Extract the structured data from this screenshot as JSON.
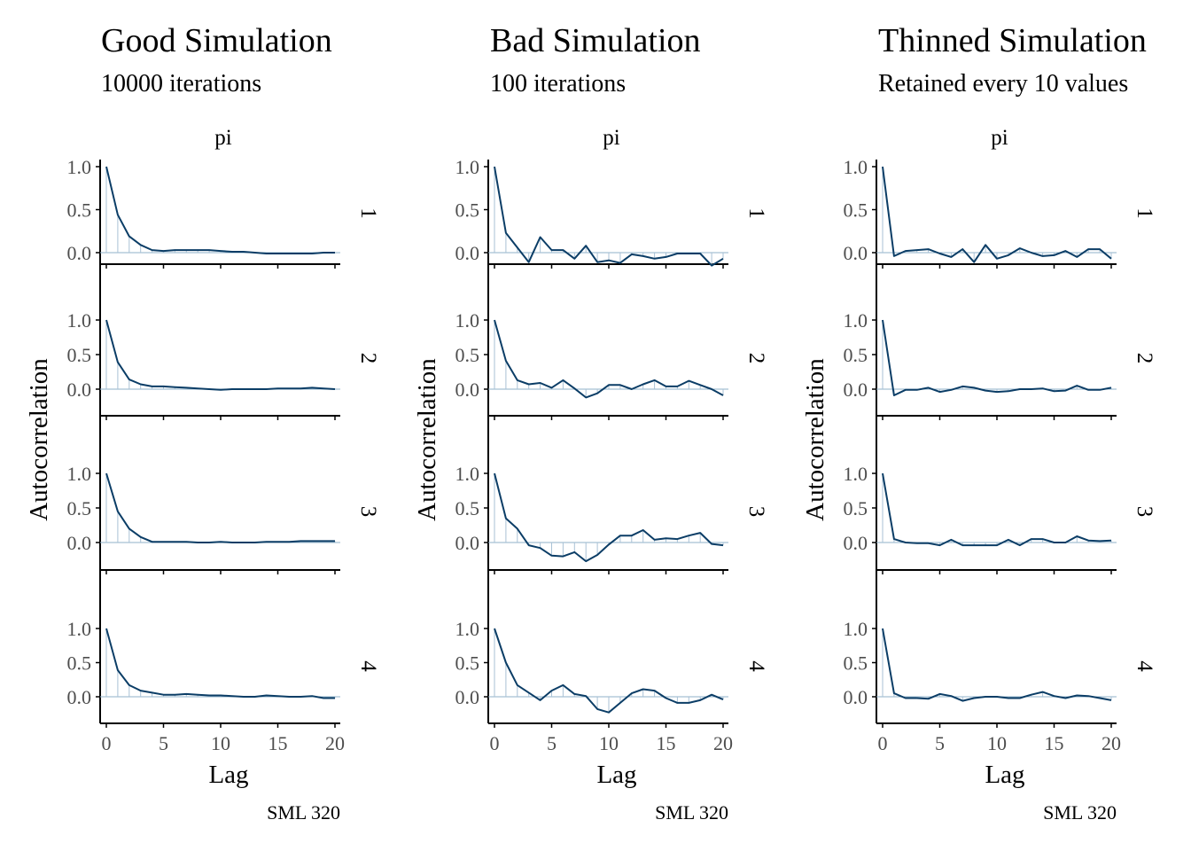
{
  "colors": {
    "line": "#0b3d66",
    "spike": "#a9c2d6",
    "zero_line": "#8fb0c8",
    "axis": "#000000",
    "tick_text": "#4d4d4d",
    "text": "#000000"
  },
  "chart_data": [
    {
      "type": "line",
      "title": "Good Simulation",
      "subtitle": "10000 iterations",
      "strip_label": "pi",
      "xlabel": "Lag",
      "ylabel": "Autocorrelation",
      "caption": "SML 320",
      "x_ticks": [
        "0",
        "5",
        "10",
        "15",
        "20"
      ],
      "xlim": [
        0,
        20
      ],
      "panels": [
        {
          "chain": "1",
          "ylim": [
            -0.02,
            1.0
          ],
          "yticks": [
            "1.0",
            "0.5",
            "0.0"
          ],
          "lags": [
            0,
            1,
            2,
            3,
            4,
            5,
            6,
            7,
            8,
            9,
            10,
            11,
            12,
            13,
            14,
            15,
            16,
            17,
            18,
            19,
            20
          ],
          "acf": [
            1.0,
            0.44,
            0.19,
            0.09,
            0.03,
            0.02,
            0.03,
            0.03,
            0.03,
            0.03,
            0.02,
            0.01,
            0.01,
            0.0,
            -0.01,
            -0.01,
            -0.01,
            -0.01,
            -0.01,
            0.0,
            0.0
          ]
        },
        {
          "chain": "2",
          "ylim": [
            -0.02,
            1.0
          ],
          "yticks": [
            "1.0",
            "0.5",
            "0.0"
          ],
          "lags": [
            0,
            1,
            2,
            3,
            4,
            5,
            6,
            7,
            8,
            9,
            10,
            11,
            12,
            13,
            14,
            15,
            16,
            17,
            18,
            19,
            20
          ],
          "acf": [
            1.0,
            0.39,
            0.14,
            0.07,
            0.04,
            0.04,
            0.03,
            0.02,
            0.01,
            0.0,
            -0.01,
            0.0,
            0.0,
            0.0,
            0.0,
            0.01,
            0.01,
            0.01,
            0.02,
            0.01,
            0.0
          ]
        },
        {
          "chain": "3",
          "ylim": [
            -0.02,
            1.0
          ],
          "yticks": [
            "1.0",
            "0.5",
            "0.0"
          ],
          "lags": [
            0,
            1,
            2,
            3,
            4,
            5,
            6,
            7,
            8,
            9,
            10,
            11,
            12,
            13,
            14,
            15,
            16,
            17,
            18,
            19,
            20
          ],
          "acf": [
            1.0,
            0.45,
            0.2,
            0.08,
            0.01,
            0.01,
            0.01,
            0.01,
            0.0,
            0.0,
            0.01,
            0.0,
            0.0,
            0.0,
            0.01,
            0.01,
            0.01,
            0.02,
            0.02,
            0.02,
            0.02
          ]
        },
        {
          "chain": "4",
          "ylim": [
            -0.02,
            1.0
          ],
          "yticks": [
            "1.0",
            "0.5",
            "0.0"
          ],
          "lags": [
            0,
            1,
            2,
            3,
            4,
            5,
            6,
            7,
            8,
            9,
            10,
            11,
            12,
            13,
            14,
            15,
            16,
            17,
            18,
            19,
            20
          ],
          "acf": [
            1.0,
            0.39,
            0.17,
            0.09,
            0.06,
            0.03,
            0.03,
            0.04,
            0.03,
            0.02,
            0.02,
            0.01,
            0.0,
            0.0,
            0.02,
            0.01,
            0.0,
            0.0,
            0.01,
            -0.02,
            -0.02
          ]
        }
      ]
    },
    {
      "type": "line",
      "title": "Bad Simulation",
      "subtitle": "100 iterations",
      "strip_label": "pi",
      "xlabel": "Lag",
      "ylabel": "Autocorrelation",
      "caption": "SML 320",
      "x_ticks": [
        "0",
        "5",
        "10",
        "15",
        "20"
      ],
      "xlim": [
        0,
        20
      ],
      "panels": [
        {
          "chain": "1",
          "ylim": [
            -0.33,
            1.0
          ],
          "yticks": [
            "1.0",
            "0.5",
            "0.0"
          ],
          "lags": [
            0,
            1,
            2,
            3,
            4,
            5,
            6,
            7,
            8,
            9,
            10,
            11,
            12,
            13,
            14,
            15,
            16,
            17,
            18,
            19,
            20
          ],
          "acf": [
            1.0,
            0.23,
            0.06,
            -0.11,
            0.18,
            0.03,
            0.03,
            -0.07,
            0.08,
            -0.11,
            -0.09,
            -0.12,
            -0.02,
            -0.04,
            -0.07,
            -0.05,
            -0.01,
            -0.01,
            -0.01,
            -0.15,
            -0.07
          ]
        },
        {
          "chain": "2",
          "ylim": [
            -0.33,
            1.0
          ],
          "yticks": [
            "1.0",
            "0.5",
            "0.0"
          ],
          "lags": [
            0,
            1,
            2,
            3,
            4,
            5,
            6,
            7,
            8,
            9,
            10,
            11,
            12,
            13,
            14,
            15,
            16,
            17,
            18,
            19,
            20
          ],
          "acf": [
            1.0,
            0.41,
            0.13,
            0.07,
            0.09,
            0.02,
            0.13,
            0.01,
            -0.12,
            -0.06,
            0.06,
            0.06,
            0.0,
            0.07,
            0.13,
            0.04,
            0.04,
            0.12,
            0.06,
            0.0,
            -0.09
          ]
        },
        {
          "chain": "3",
          "ylim": [
            -0.33,
            1.0
          ],
          "yticks": [
            "1.0",
            "0.5",
            "0.0"
          ],
          "lags": [
            0,
            1,
            2,
            3,
            4,
            5,
            6,
            7,
            8,
            9,
            10,
            11,
            12,
            13,
            14,
            15,
            16,
            17,
            18,
            19,
            20
          ],
          "acf": [
            1.0,
            0.35,
            0.2,
            -0.04,
            -0.08,
            -0.19,
            -0.2,
            -0.14,
            -0.27,
            -0.18,
            -0.03,
            0.1,
            0.1,
            0.18,
            0.04,
            0.06,
            0.05,
            0.1,
            0.14,
            -0.02,
            -0.04
          ]
        },
        {
          "chain": "4",
          "ylim": [
            -0.33,
            1.0
          ],
          "yticks": [
            "1.0",
            "0.5",
            "0.0"
          ],
          "lags": [
            0,
            1,
            2,
            3,
            4,
            5,
            6,
            7,
            8,
            9,
            10,
            11,
            12,
            13,
            14,
            15,
            16,
            17,
            18,
            19,
            20
          ],
          "acf": [
            1.0,
            0.5,
            0.17,
            0.06,
            -0.05,
            0.09,
            0.17,
            0.04,
            0.01,
            -0.18,
            -0.23,
            -0.09,
            0.05,
            0.11,
            0.09,
            -0.02,
            -0.09,
            -0.09,
            -0.05,
            0.03,
            -0.04
          ]
        }
      ]
    },
    {
      "type": "line",
      "title": "Thinned Simulation",
      "subtitle": "Retained every 10 values",
      "strip_label": "pi",
      "xlabel": "Lag",
      "ylabel": "Autocorrelation",
      "caption": "SML 320",
      "x_ticks": [
        "0",
        "5",
        "10",
        "15",
        "20"
      ],
      "xlim": [
        0,
        20
      ],
      "panels": [
        {
          "chain": "1",
          "ylim": [
            -0.17,
            1.0
          ],
          "yticks": [
            "1.0",
            "0.5",
            "0.0"
          ],
          "lags": [
            0,
            1,
            2,
            3,
            4,
            5,
            6,
            7,
            8,
            9,
            10,
            11,
            12,
            13,
            14,
            15,
            16,
            17,
            18,
            19,
            20
          ],
          "acf": [
            1.0,
            -0.04,
            0.02,
            0.03,
            0.04,
            -0.01,
            -0.05,
            0.04,
            -0.11,
            0.09,
            -0.07,
            -0.03,
            0.05,
            0.0,
            -0.04,
            -0.03,
            0.02,
            -0.05,
            0.04,
            0.04,
            -0.07
          ]
        },
        {
          "chain": "2",
          "ylim": [
            -0.12,
            1.0
          ],
          "yticks": [
            "1.0",
            "0.5",
            "0.0"
          ],
          "lags": [
            0,
            1,
            2,
            3,
            4,
            5,
            6,
            7,
            8,
            9,
            10,
            11,
            12,
            13,
            14,
            15,
            16,
            17,
            18,
            19,
            20
          ],
          "acf": [
            1.0,
            -0.09,
            -0.01,
            -0.01,
            0.02,
            -0.04,
            -0.01,
            0.04,
            0.02,
            -0.02,
            -0.04,
            -0.03,
            0.0,
            0.0,
            0.01,
            -0.03,
            -0.02,
            0.05,
            -0.01,
            -0.01,
            0.02
          ]
        },
        {
          "chain": "3",
          "ylim": [
            -0.1,
            1.0
          ],
          "yticks": [
            "1.0",
            "0.5",
            "0.0"
          ],
          "lags": [
            0,
            1,
            2,
            3,
            4,
            5,
            6,
            7,
            8,
            9,
            10,
            11,
            12,
            13,
            14,
            15,
            16,
            17,
            18,
            19,
            20
          ],
          "acf": [
            1.0,
            0.05,
            0.0,
            -0.01,
            -0.01,
            -0.04,
            0.04,
            -0.04,
            -0.04,
            -0.04,
            -0.04,
            0.04,
            -0.04,
            0.05,
            0.05,
            0.0,
            0.0,
            0.09,
            0.03,
            0.02,
            0.03
          ]
        },
        {
          "chain": "4",
          "ylim": [
            -0.12,
            1.0
          ],
          "yticks": [
            "1.0",
            "0.5",
            "0.0"
          ],
          "lags": [
            0,
            1,
            2,
            3,
            4,
            5,
            6,
            7,
            8,
            9,
            10,
            11,
            12,
            13,
            14,
            15,
            16,
            17,
            18,
            19,
            20
          ],
          "acf": [
            1.0,
            0.05,
            -0.02,
            -0.02,
            -0.03,
            0.04,
            0.01,
            -0.06,
            -0.02,
            0.0,
            0.0,
            -0.02,
            -0.02,
            0.03,
            0.07,
            0.01,
            -0.02,
            0.02,
            0.01,
            -0.02,
            -0.05
          ]
        }
      ]
    }
  ]
}
